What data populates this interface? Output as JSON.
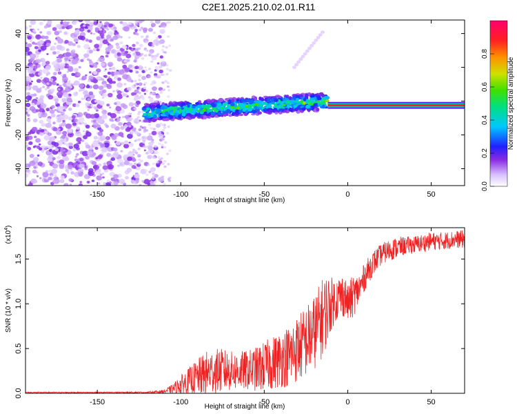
{
  "title": "C2E1.2025.210.02.01.R11",
  "chart_data": [
    {
      "type": "heatmap",
      "xlabel": "Height of straight line (km)",
      "ylabel": "Frequency (Hz)",
      "xlim": [
        -193,
        70
      ],
      "ylim": [
        -50,
        48
      ],
      "x_ticks": [
        -150,
        -100,
        -50,
        0,
        50
      ],
      "y_ticks": [
        -40,
        -20,
        0,
        20,
        40
      ],
      "colorbar": {
        "label": "Normalized spectral amplitude",
        "range": [
          0,
          1
        ],
        "ticks": [
          0.0,
          0.2,
          0.4,
          0.6,
          0.8
        ]
      },
      "features": [
        {
          "name": "scattered noise",
          "x_range": [
            -193,
            -110
          ],
          "y_range": [
            -50,
            48
          ],
          "amplitude": 0.1
        },
        {
          "name": "signal band",
          "x_range": [
            -122,
            -12
          ],
          "center_freq_start": -7,
          "center_freq_end": 0,
          "half_width": 5,
          "amplitude": 0.35
        },
        {
          "name": "carrier line",
          "x_range": [
            -12,
            70
          ],
          "center_freq": -2.5,
          "amplitude": 0.9
        }
      ]
    },
    {
      "type": "line",
      "xlabel": "Height of straight line (km)",
      "ylabel": "SNR (10 * v/v)",
      "y_multiplier_label": "(x10",
      "y_multiplier_exp": "4",
      "y_multiplier_close": ")",
      "xlim": [
        -193,
        70
      ],
      "ylim": [
        0,
        1.85
      ],
      "x_ticks": [
        -150,
        -100,
        -50,
        0,
        50
      ],
      "y_ticks": [
        0.0,
        0.5,
        1.0,
        1.5
      ],
      "y_tick_labels": [
        "0.0",
        "0.5",
        "1.0",
        "1.5"
      ],
      "color": "#ee2222",
      "series": [
        {
          "x": [
            -193,
            -150,
            -120,
            -110,
            -105,
            -100,
            -95,
            -90,
            -85,
            -80,
            -75,
            -70,
            -65,
            -60,
            -55,
            -50,
            -45,
            -40,
            -35,
            -30,
            -25,
            -20,
            -15,
            -12,
            -10,
            -7,
            -5,
            -2,
            0,
            3,
            5,
            8,
            10,
            15,
            20,
            25,
            30,
            35,
            40,
            45,
            50,
            55,
            60,
            65,
            70
          ],
          "y": [
            0.01,
            0.01,
            0.01,
            0.02,
            0.05,
            0.1,
            0.14,
            0.18,
            0.22,
            0.25,
            0.25,
            0.25,
            0.25,
            0.26,
            0.27,
            0.3,
            0.34,
            0.38,
            0.42,
            0.5,
            0.58,
            0.68,
            0.85,
            0.95,
            1.0,
            1.05,
            1.08,
            1.1,
            1.0,
            1.08,
            1.12,
            1.2,
            1.3,
            1.45,
            1.55,
            1.6,
            1.63,
            1.65,
            1.66,
            1.68,
            1.7,
            1.7,
            1.71,
            1.72,
            1.72
          ],
          "spread": [
            0.005,
            0.005,
            0.008,
            0.02,
            0.05,
            0.1,
            0.15,
            0.2,
            0.25,
            0.25,
            0.25,
            0.22,
            0.22,
            0.22,
            0.25,
            0.28,
            0.3,
            0.32,
            0.35,
            0.38,
            0.4,
            0.42,
            0.45,
            0.4,
            0.3,
            0.25,
            0.25,
            0.25,
            0.2,
            0.25,
            0.2,
            0.18,
            0.16,
            0.14,
            0.12,
            0.12,
            0.12,
            0.1,
            0.1,
            0.1,
            0.1,
            0.1,
            0.1,
            0.1,
            0.1
          ]
        }
      ]
    }
  ]
}
